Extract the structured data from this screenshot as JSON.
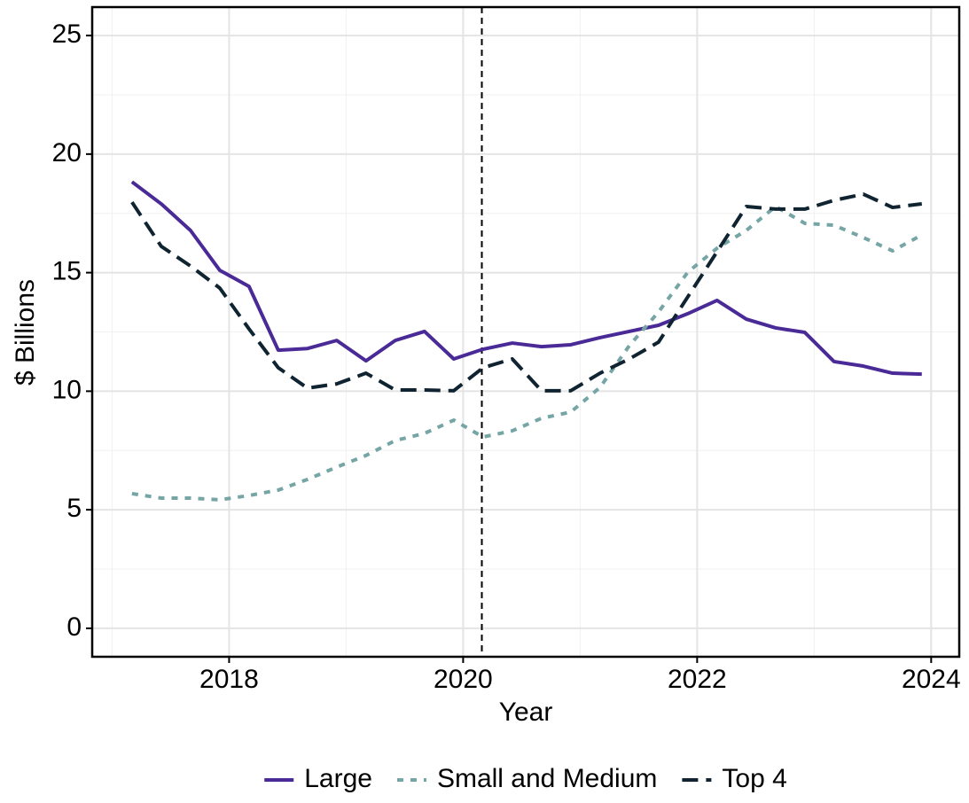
{
  "chart_data": {
    "type": "line",
    "x_label": "Year",
    "y_label": "$ Billions",
    "x": [
      2017.17,
      2017.42,
      2017.67,
      2017.92,
      2018.17,
      2018.42,
      2018.67,
      2018.92,
      2019.17,
      2019.42,
      2019.67,
      2019.92,
      2020.17,
      2020.42,
      2020.67,
      2020.92,
      2021.17,
      2021.42,
      2021.67,
      2021.92,
      2022.17,
      2022.42,
      2022.67,
      2022.92,
      2023.17,
      2023.42,
      2023.67,
      2023.92
    ],
    "series": [
      {
        "name": "Large",
        "color": "#4a2a96",
        "linestyle": "solid",
        "values": [
          18.83,
          17.9,
          16.78,
          15.1,
          14.42,
          11.73,
          11.8,
          12.14,
          11.28,
          12.14,
          12.52,
          11.36,
          11.77,
          12.03,
          11.88,
          11.96,
          12.26,
          12.52,
          12.78,
          13.27,
          13.83,
          13.04,
          12.67,
          12.48,
          11.25,
          11.06,
          10.76,
          10.72
        ]
      },
      {
        "name": "Small and Medium",
        "color": "#76a5a5",
        "linestyle": "dotted",
        "values": [
          5.68,
          5.49,
          5.49,
          5.42,
          5.6,
          5.83,
          6.28,
          6.8,
          7.29,
          7.92,
          8.22,
          8.78,
          8.07,
          8.33,
          8.86,
          9.12,
          10.16,
          11.92,
          13.34,
          15.02,
          16.03,
          16.78,
          17.79,
          17.08,
          17.0,
          16.48,
          15.92,
          16.59
        ]
      },
      {
        "name": "Top 4",
        "color": "#0f2430",
        "linestyle": "dashed",
        "values": [
          17.97,
          16.11,
          15.28,
          14.35,
          12.63,
          10.99,
          10.13,
          10.31,
          10.76,
          10.05,
          10.05,
          10.02,
          10.99,
          11.36,
          10.02,
          10.02,
          10.76,
          11.36,
          12.07,
          13.98,
          15.88,
          17.79,
          17.68,
          17.68,
          18.05,
          18.31,
          17.75,
          17.9
        ]
      }
    ],
    "xlim": [
      2016.83,
      2024.24
    ],
    "ylim": [
      -1.2,
      26.2
    ],
    "xticks": [
      2018,
      2020,
      2022,
      2024
    ],
    "yticks": [
      0,
      5,
      10,
      15,
      20,
      25
    ],
    "xminor": [
      2017,
      2019,
      2021,
      2023
    ],
    "yminor": [
      2.5,
      7.5,
      12.5,
      17.5,
      22.5
    ],
    "reference_x": 2020.16,
    "grid": true,
    "legend": "bottom"
  }
}
